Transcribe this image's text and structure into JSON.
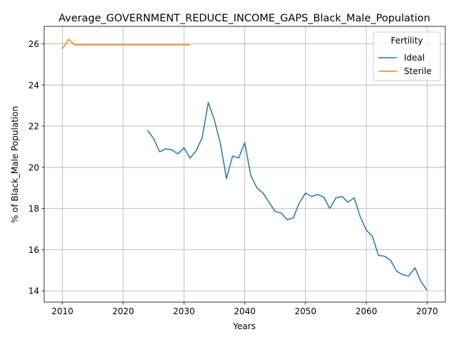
{
  "chart_data": {
    "type": "line",
    "title": "Average_GOVERNMENT_REDUCE_INCOME_GAPS_Black_Male_Population",
    "xlabel": "Years",
    "ylabel": "% of Black_Male Population",
    "xlim": [
      2007,
      2073
    ],
    "ylim": [
      13.45,
      26.85
    ],
    "xticks": [
      2010,
      2020,
      2030,
      2040,
      2050,
      2060,
      2070
    ],
    "yticks": [
      14,
      16,
      18,
      20,
      22,
      24,
      26
    ],
    "grid": true,
    "legend": {
      "title": "Fertility",
      "placement": "top-right"
    },
    "series": [
      {
        "name": "Ideal",
        "color": "#1f77b4",
        "x": [
          2024,
          2025,
          2026,
          2027,
          2028,
          2029,
          2030,
          2031,
          2032,
          2033,
          2034,
          2035,
          2036,
          2037,
          2038,
          2039,
          2040,
          2041,
          2042,
          2043,
          2044,
          2045,
          2046,
          2047,
          2048,
          2049,
          2050,
          2051,
          2052,
          2053,
          2054,
          2055,
          2056,
          2057,
          2058,
          2059,
          2060,
          2061,
          2062,
          2063,
          2064,
          2065,
          2066,
          2067,
          2068,
          2069,
          2070
        ],
        "y": [
          21.8,
          21.4,
          20.75,
          20.9,
          20.85,
          20.65,
          20.95,
          20.45,
          20.8,
          21.45,
          23.15,
          22.3,
          21.15,
          19.45,
          20.55,
          20.45,
          21.2,
          19.6,
          19.0,
          18.75,
          18.3,
          17.85,
          17.78,
          17.45,
          17.55,
          18.28,
          18.75,
          18.58,
          18.68,
          18.55,
          18.0,
          18.52,
          18.58,
          18.3,
          18.52,
          17.6,
          16.95,
          16.65,
          15.72,
          15.68,
          15.48,
          14.95,
          14.78,
          14.72,
          15.12,
          14.45,
          14.02
        ]
      },
      {
        "name": "Sterile",
        "color": "#ff7f0e",
        "x": [
          2010,
          2011,
          2012,
          2013,
          2014,
          2015,
          2016,
          2017,
          2018,
          2019,
          2020,
          2021,
          2022,
          2023,
          2024,
          2025,
          2026,
          2027,
          2028,
          2029,
          2030,
          2031
        ],
        "y": [
          25.75,
          26.22,
          25.95,
          25.95,
          25.95,
          25.95,
          25.95,
          25.95,
          25.95,
          25.95,
          25.95,
          25.95,
          25.95,
          25.95,
          25.95,
          25.95,
          25.95,
          25.95,
          25.95,
          25.95,
          25.95,
          25.95
        ]
      }
    ]
  }
}
